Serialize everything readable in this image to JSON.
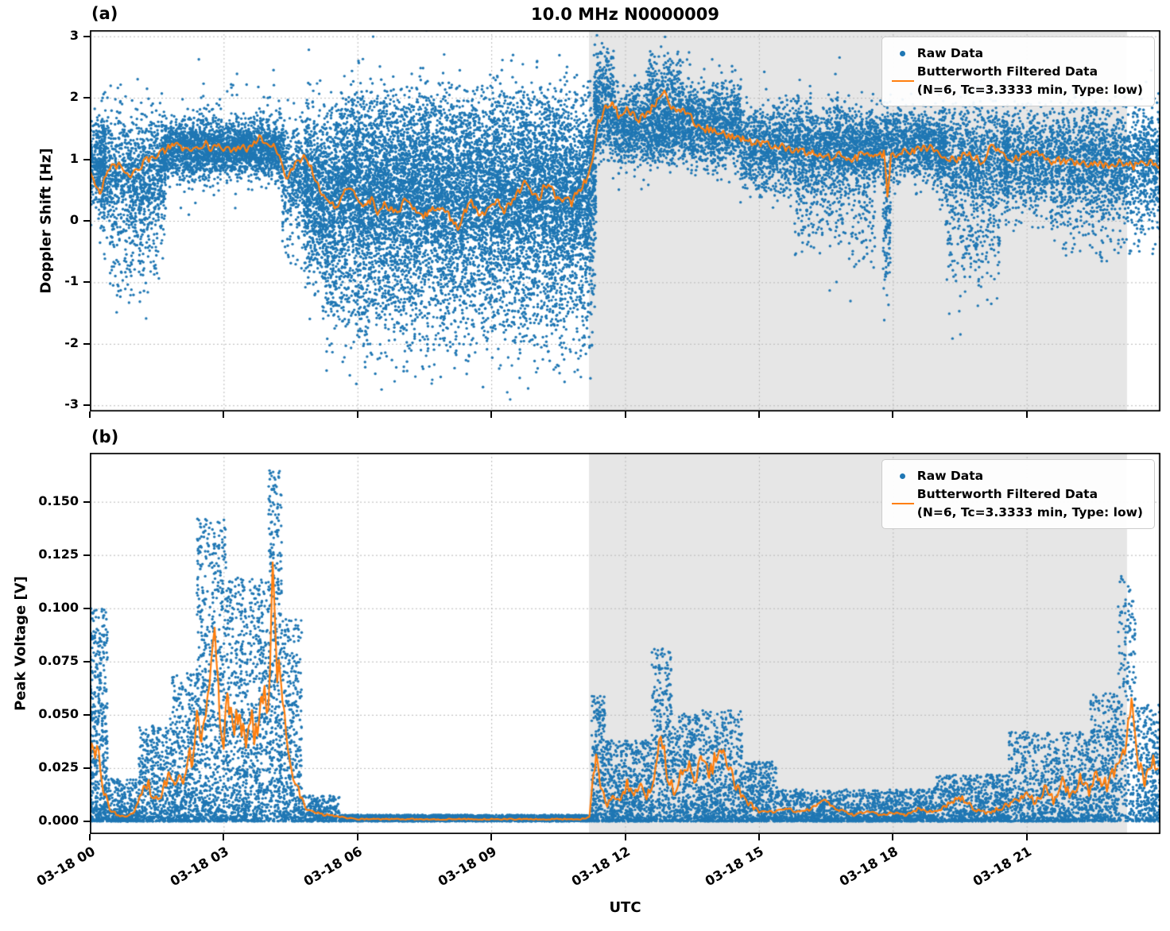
{
  "figure": {
    "xlabel": "UTC",
    "x_unit": "hours since 03-18 00:00 UTC",
    "xrange": [
      0,
      24
    ],
    "shade_hours": [
      11.19,
      23.25
    ],
    "colors": {
      "raw": "#1f77b4",
      "filtered": "#ff7f0e",
      "shade": "#e6e6e6",
      "grid": "#b8b8b8",
      "axis": "#000000",
      "background": "#ffffff"
    },
    "legend": {
      "raw_label": "Raw Data",
      "filtered_label": "Butterworth Filtered Data",
      "filtered_sublabel": "(N=6, Tc=3.3333 min, Type: low)"
    },
    "xticks": {
      "hours": [
        0,
        3,
        6,
        9,
        12,
        15,
        18,
        21
      ],
      "labels": [
        "03-18 00",
        "03-18 03",
        "03-18 06",
        "03-18 09",
        "03-18 12",
        "03-18 15",
        "03-18 18",
        "03-18 21"
      ]
    }
  },
  "chart_data": [
    {
      "type": "scatter",
      "panel_label": "(a)",
      "title": "10.0 MHz N0000009",
      "ylabel": "Doppler Shift [Hz]",
      "ylim": [
        -3.1,
        3.1
      ],
      "yticks": {
        "values": [
          -3,
          -2,
          -1,
          0,
          1,
          2,
          3
        ],
        "labels": [
          "-3",
          "-2",
          "-1",
          "0",
          "1",
          "2",
          "3"
        ]
      },
      "grid": "dotted",
      "legend_position": "upper right",
      "series_names": [
        "Raw Data",
        "Butterworth Filtered Data (N=6, Tc=3.3333 min, Type: low)"
      ],
      "raw_scatter_envelope_fields": [
        "t_start_h",
        "t_end_h",
        "center_hz",
        "spread_sd_hz",
        "n_points"
      ],
      "raw_scatter_envelope": [
        [
          0.0,
          0.35,
          0.9,
          0.35,
          300
        ],
        [
          0.2,
          1.7,
          0.75,
          0.5,
          1100
        ],
        [
          0.45,
          1.55,
          -0.4,
          0.55,
          170
        ],
        [
          1.6,
          4.35,
          1.15,
          0.22,
          2200
        ],
        [
          2.0,
          4.3,
          1.3,
          0.45,
          300
        ],
        [
          4.3,
          4.9,
          0.7,
          0.5,
          400
        ],
        [
          4.8,
          11.35,
          0.45,
          0.65,
          8500
        ],
        [
          5.2,
          11.3,
          -1.0,
          0.55,
          1700
        ],
        [
          5.5,
          11.25,
          1.6,
          0.35,
          900
        ],
        [
          5.8,
          11.3,
          -2.0,
          0.4,
          130
        ],
        [
          11.3,
          11.75,
          1.9,
          0.45,
          420
        ],
        [
          11.75,
          14.6,
          1.55,
          0.33,
          2300
        ],
        [
          12.5,
          13.3,
          2.2,
          0.28,
          220
        ],
        [
          14.6,
          17.0,
          1.2,
          0.35,
          1700
        ],
        [
          15.8,
          17.6,
          0.45,
          0.55,
          450
        ],
        [
          17.0,
          19.2,
          1.25,
          0.28,
          1500
        ],
        [
          17.78,
          17.95,
          0.1,
          0.6,
          130
        ],
        [
          19.0,
          20.6,
          1.0,
          0.45,
          1000
        ],
        [
          19.2,
          20.4,
          -0.2,
          0.5,
          230
        ],
        [
          20.5,
          24.0,
          1.0,
          0.42,
          2400
        ],
        [
          21.5,
          24.0,
          0.15,
          0.4,
          280
        ]
      ],
      "line_noise": {
        "mode": "absolute",
        "amp": 0.07
      },
      "filtered_line": [
        [
          0.0,
          0.85
        ],
        [
          0.12,
          0.62
        ],
        [
          0.22,
          0.45
        ],
        [
          0.35,
          0.72
        ],
        [
          0.5,
          0.92
        ],
        [
          0.65,
          0.88
        ],
        [
          0.8,
          0.72
        ],
        [
          0.95,
          0.78
        ],
        [
          1.1,
          0.88
        ],
        [
          1.25,
          0.97
        ],
        [
          1.4,
          1.02
        ],
        [
          1.55,
          1.08
        ],
        [
          1.7,
          1.15
        ],
        [
          1.85,
          1.22
        ],
        [
          2.0,
          1.25
        ],
        [
          2.15,
          1.12
        ],
        [
          2.3,
          1.18
        ],
        [
          2.45,
          1.22
        ],
        [
          2.6,
          1.26
        ],
        [
          2.75,
          1.15
        ],
        [
          2.9,
          1.22
        ],
        [
          3.05,
          1.18
        ],
        [
          3.2,
          1.12
        ],
        [
          3.35,
          1.2
        ],
        [
          3.5,
          1.16
        ],
        [
          3.65,
          1.22
        ],
        [
          3.8,
          1.35
        ],
        [
          3.95,
          1.28
        ],
        [
          4.1,
          1.22
        ],
        [
          4.25,
          1.12
        ],
        [
          4.4,
          0.66
        ],
        [
          4.55,
          0.82
        ],
        [
          4.7,
          1.0
        ],
        [
          4.85,
          1.05
        ],
        [
          5.0,
          0.78
        ],
        [
          5.15,
          0.52
        ],
        [
          5.3,
          0.36
        ],
        [
          5.5,
          0.2
        ],
        [
          5.7,
          0.46
        ],
        [
          5.85,
          0.55
        ],
        [
          6.0,
          0.35
        ],
        [
          6.15,
          0.2
        ],
        [
          6.3,
          0.36
        ],
        [
          6.45,
          0.12
        ],
        [
          6.6,
          0.28
        ],
        [
          6.75,
          0.2
        ],
        [
          6.9,
          0.14
        ],
        [
          7.05,
          0.3
        ],
        [
          7.2,
          0.22
        ],
        [
          7.35,
          0.12
        ],
        [
          7.5,
          0.1
        ],
        [
          7.65,
          0.17
        ],
        [
          7.8,
          0.26
        ],
        [
          7.95,
          0.15
        ],
        [
          8.1,
          0.05
        ],
        [
          8.25,
          -0.1
        ],
        [
          8.4,
          0.12
        ],
        [
          8.55,
          0.3
        ],
        [
          8.7,
          0.15
        ],
        [
          8.85,
          0.1
        ],
        [
          9.0,
          0.22
        ],
        [
          9.15,
          0.3
        ],
        [
          9.3,
          0.14
        ],
        [
          9.45,
          0.32
        ],
        [
          9.6,
          0.45
        ],
        [
          9.75,
          0.68
        ],
        [
          9.9,
          0.5
        ],
        [
          10.05,
          0.32
        ],
        [
          10.2,
          0.6
        ],
        [
          10.35,
          0.52
        ],
        [
          10.5,
          0.3
        ],
        [
          10.65,
          0.36
        ],
        [
          10.8,
          0.3
        ],
        [
          10.95,
          0.5
        ],
        [
          11.1,
          0.62
        ],
        [
          11.25,
          0.9
        ],
        [
          11.4,
          1.62
        ],
        [
          11.55,
          1.82
        ],
        [
          11.7,
          1.95
        ],
        [
          11.85,
          1.72
        ],
        [
          12.0,
          1.82
        ],
        [
          12.15,
          1.76
        ],
        [
          12.3,
          1.65
        ],
        [
          12.45,
          1.7
        ],
        [
          12.6,
          1.82
        ],
        [
          12.75,
          2.02
        ],
        [
          12.88,
          2.16
        ],
        [
          13.0,
          1.88
        ],
        [
          13.15,
          1.72
        ],
        [
          13.3,
          1.82
        ],
        [
          13.45,
          1.72
        ],
        [
          13.6,
          1.56
        ],
        [
          13.8,
          1.5
        ],
        [
          14.0,
          1.46
        ],
        [
          14.2,
          1.4
        ],
        [
          14.4,
          1.36
        ],
        [
          14.6,
          1.32
        ],
        [
          14.8,
          1.3
        ],
        [
          15.0,
          1.26
        ],
        [
          15.3,
          1.22
        ],
        [
          15.6,
          1.2
        ],
        [
          15.9,
          1.12
        ],
        [
          16.2,
          1.1
        ],
        [
          16.5,
          1.02
        ],
        [
          16.8,
          1.06
        ],
        [
          17.1,
          1.0
        ],
        [
          17.4,
          1.1
        ],
        [
          17.6,
          1.06
        ],
        [
          17.8,
          1.1
        ],
        [
          17.88,
          0.42
        ],
        [
          17.96,
          1.04
        ],
        [
          18.2,
          1.1
        ],
        [
          18.5,
          1.16
        ],
        [
          18.8,
          1.2
        ],
        [
          19.1,
          1.06
        ],
        [
          19.4,
          1.0
        ],
        [
          19.7,
          1.1
        ],
        [
          20.0,
          0.96
        ],
        [
          20.25,
          1.24
        ],
        [
          20.45,
          1.1
        ],
        [
          20.7,
          1.0
        ],
        [
          21.0,
          1.06
        ],
        [
          21.3,
          1.1
        ],
        [
          21.6,
          0.96
        ],
        [
          21.9,
          1.0
        ],
        [
          22.2,
          0.92
        ],
        [
          22.5,
          0.96
        ],
        [
          22.8,
          0.9
        ],
        [
          23.1,
          0.96
        ],
        [
          23.4,
          0.88
        ],
        [
          23.7,
          0.94
        ],
        [
          24.0,
          0.9
        ]
      ]
    },
    {
      "type": "scatter",
      "panel_label": "(b)",
      "title": "",
      "ylabel": "Peak Voltage [V]",
      "ylim": [
        -0.006,
        0.173
      ],
      "yticks": {
        "values": [
          0.0,
          0.025,
          0.05,
          0.075,
          0.1,
          0.125,
          0.15
        ],
        "labels": [
          "0.000",
          "0.025",
          "0.050",
          "0.075",
          "0.100",
          "0.125",
          "0.150"
        ]
      },
      "grid": "dotted",
      "legend_position": "upper right",
      "series_names": [
        "Raw Data",
        "Butterworth Filtered Data (N=6, Tc=3.3333 min, Type: low)"
      ],
      "raw_scatter_envelope_pow_fields": [
        "t_start_h",
        "t_end_h",
        "max_v",
        "n_points",
        "pow_k"
      ],
      "raw_scatter_envelope_pow": [
        [
          0.0,
          0.4,
          0.1,
          500,
          1.6
        ],
        [
          0.4,
          1.1,
          0.02,
          350,
          2.0
        ],
        [
          1.1,
          1.8,
          0.045,
          450,
          1.8
        ],
        [
          1.8,
          2.4,
          0.07,
          500,
          1.8
        ],
        [
          2.4,
          3.05,
          0.142,
          700,
          1.6
        ],
        [
          3.05,
          4.0,
          0.115,
          900,
          1.7
        ],
        [
          4.0,
          4.3,
          0.165,
          400,
          1.3
        ],
        [
          4.3,
          4.75,
          0.095,
          400,
          1.7
        ],
        [
          4.75,
          5.6,
          0.012,
          300,
          1.5
        ],
        [
          5.6,
          11.25,
          0.003,
          2400,
          1.2
        ],
        [
          11.25,
          11.55,
          0.059,
          260,
          1.4
        ],
        [
          11.55,
          12.6,
          0.038,
          700,
          1.8
        ],
        [
          12.6,
          13.05,
          0.081,
          360,
          1.6
        ],
        [
          13.05,
          14.65,
          0.052,
          1100,
          1.8
        ],
        [
          14.65,
          15.4,
          0.028,
          450,
          1.8
        ],
        [
          15.4,
          18.9,
          0.015,
          1500,
          1.9
        ],
        [
          18.9,
          20.6,
          0.022,
          800,
          1.9
        ],
        [
          20.6,
          22.4,
          0.042,
          900,
          1.9
        ],
        [
          22.4,
          23.05,
          0.06,
          450,
          1.6
        ],
        [
          23.05,
          23.45,
          0.117,
          260,
          1.4
        ],
        [
          23.45,
          24.0,
          0.055,
          350,
          1.6
        ]
      ],
      "line_noise": {
        "mode": "relative",
        "factor": 0.2,
        "min": 0.0003,
        "cap": 0.008
      },
      "filtered_line": [
        [
          0.0,
          0.028
        ],
        [
          0.1,
          0.035
        ],
        [
          0.2,
          0.03
        ],
        [
          0.3,
          0.016
        ],
        [
          0.45,
          0.006
        ],
        [
          0.6,
          0.003
        ],
        [
          0.8,
          0.002
        ],
        [
          1.0,
          0.004
        ],
        [
          1.15,
          0.012
        ],
        [
          1.3,
          0.018
        ],
        [
          1.45,
          0.01
        ],
        [
          1.6,
          0.013
        ],
        [
          1.75,
          0.02
        ],
        [
          1.9,
          0.017
        ],
        [
          2.0,
          0.024
        ],
        [
          2.1,
          0.02
        ],
        [
          2.2,
          0.034
        ],
        [
          2.3,
          0.028
        ],
        [
          2.4,
          0.044
        ],
        [
          2.5,
          0.034
        ],
        [
          2.6,
          0.05
        ],
        [
          2.7,
          0.074
        ],
        [
          2.8,
          0.094
        ],
        [
          2.9,
          0.054
        ],
        [
          3.0,
          0.036
        ],
        [
          3.1,
          0.06
        ],
        [
          3.2,
          0.042
        ],
        [
          3.3,
          0.05
        ],
        [
          3.4,
          0.044
        ],
        [
          3.5,
          0.032
        ],
        [
          3.6,
          0.054
        ],
        [
          3.7,
          0.04
        ],
        [
          3.8,
          0.05
        ],
        [
          3.9,
          0.06
        ],
        [
          4.0,
          0.052
        ],
        [
          4.1,
          0.12
        ],
        [
          4.2,
          0.072
        ],
        [
          4.3,
          0.064
        ],
        [
          4.4,
          0.046
        ],
        [
          4.5,
          0.03
        ],
        [
          4.6,
          0.02
        ],
        [
          4.7,
          0.012
        ],
        [
          4.85,
          0.006
        ],
        [
          5.0,
          0.004
        ],
        [
          5.3,
          0.003
        ],
        [
          5.6,
          0.002
        ],
        [
          6.0,
          0.001
        ],
        [
          7.0,
          0.001
        ],
        [
          8.0,
          0.001
        ],
        [
          9.0,
          0.001
        ],
        [
          10.0,
          0.001
        ],
        [
          11.0,
          0.001
        ],
        [
          11.2,
          0.002
        ],
        [
          11.35,
          0.032
        ],
        [
          11.45,
          0.018
        ],
        [
          11.6,
          0.008
        ],
        [
          11.75,
          0.012
        ],
        [
          11.9,
          0.01
        ],
        [
          12.05,
          0.018
        ],
        [
          12.2,
          0.012
        ],
        [
          12.35,
          0.016
        ],
        [
          12.5,
          0.012
        ],
        [
          12.65,
          0.02
        ],
        [
          12.8,
          0.044
        ],
        [
          12.95,
          0.02
        ],
        [
          13.1,
          0.015
        ],
        [
          13.25,
          0.022
        ],
        [
          13.4,
          0.028
        ],
        [
          13.55,
          0.02
        ],
        [
          13.7,
          0.03
        ],
        [
          13.85,
          0.022
        ],
        [
          14.0,
          0.028
        ],
        [
          14.15,
          0.032
        ],
        [
          14.3,
          0.025
        ],
        [
          14.45,
          0.018
        ],
        [
          14.6,
          0.012
        ],
        [
          14.8,
          0.008
        ],
        [
          15.0,
          0.005
        ],
        [
          15.3,
          0.004
        ],
        [
          15.6,
          0.006
        ],
        [
          15.9,
          0.004
        ],
        [
          16.2,
          0.006
        ],
        [
          16.5,
          0.009
        ],
        [
          16.8,
          0.005
        ],
        [
          17.1,
          0.003
        ],
        [
          17.4,
          0.005
        ],
        [
          17.7,
          0.003
        ],
        [
          18.0,
          0.004
        ],
        [
          18.3,
          0.003
        ],
        [
          18.6,
          0.006
        ],
        [
          18.9,
          0.004
        ],
        [
          19.2,
          0.007
        ],
        [
          19.5,
          0.012
        ],
        [
          19.8,
          0.006
        ],
        [
          20.1,
          0.004
        ],
        [
          20.4,
          0.006
        ],
        [
          20.7,
          0.009
        ],
        [
          21.0,
          0.014
        ],
        [
          21.2,
          0.008
        ],
        [
          21.4,
          0.016
        ],
        [
          21.6,
          0.01
        ],
        [
          21.8,
          0.018
        ],
        [
          22.0,
          0.012
        ],
        [
          22.2,
          0.02
        ],
        [
          22.4,
          0.014
        ],
        [
          22.6,
          0.022
        ],
        [
          22.8,
          0.016
        ],
        [
          23.0,
          0.025
        ],
        [
          23.2,
          0.03
        ],
        [
          23.35,
          0.052
        ],
        [
          23.5,
          0.028
        ],
        [
          23.65,
          0.018
        ],
        [
          23.8,
          0.025
        ],
        [
          23.95,
          0.03
        ]
      ]
    }
  ]
}
